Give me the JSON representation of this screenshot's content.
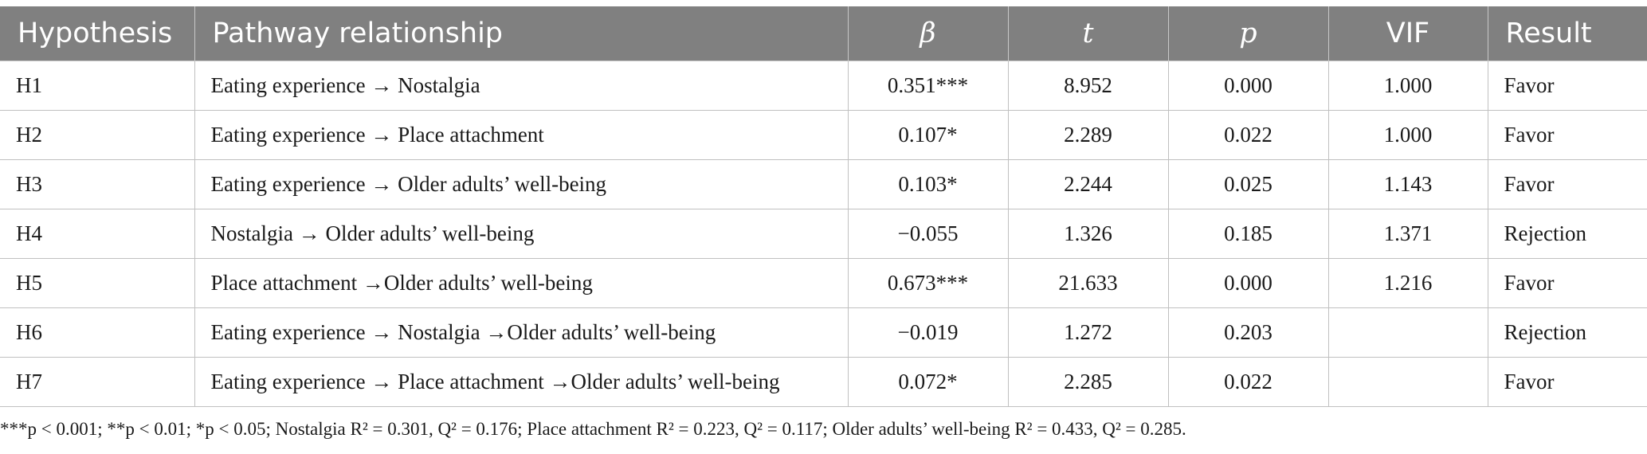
{
  "table": {
    "headers": [
      "Hypothesis",
      "Pathway relationship",
      "β",
      "t",
      "p",
      "VIF",
      "Result"
    ],
    "rows": [
      [
        "H1",
        "Eating experience → Nostalgia",
        "0.351***",
        "8.952",
        "0.000",
        "1.000",
        "Favor"
      ],
      [
        "H2",
        "Eating experience → Place attachment",
        "0.107*",
        "2.289",
        "0.022",
        "1.000",
        "Favor"
      ],
      [
        "H3",
        "Eating experience → Older adults’ well-being",
        "0.103*",
        "2.244",
        "0.025",
        "1.143",
        "Favor"
      ],
      [
        "H4",
        "Nostalgia → Older adults’ well-being",
        "−0.055",
        "1.326",
        "0.185",
        "1.371",
        "Rejection"
      ],
      [
        "H5",
        "Place attachment →Older adults’ well-being",
        "0.673***",
        "21.633",
        "0.000",
        "1.216",
        "Favor"
      ],
      [
        "H6",
        "Eating experience → Nostalgia →Older adults’ well-being",
        "−0.019",
        "1.272",
        "0.203",
        "",
        "Rejection"
      ],
      [
        "H7",
        "Eating experience → Place attachment →Older adults’ well-being",
        "0.072*",
        "2.285",
        "0.022",
        "",
        "Favor"
      ]
    ]
  },
  "footnote": "***p < 0.001; **p < 0.01; *p < 0.05; Nostalgia R² = 0.301, Q² = 0.176; Place attachment R² = 0.223, Q² = 0.117; Older adults’ well-being R² = 0.433, Q² = 0.285.",
  "colors": {
    "header_bg": "#808080",
    "header_text": "#ffffff",
    "border": "#c0c0c0"
  }
}
